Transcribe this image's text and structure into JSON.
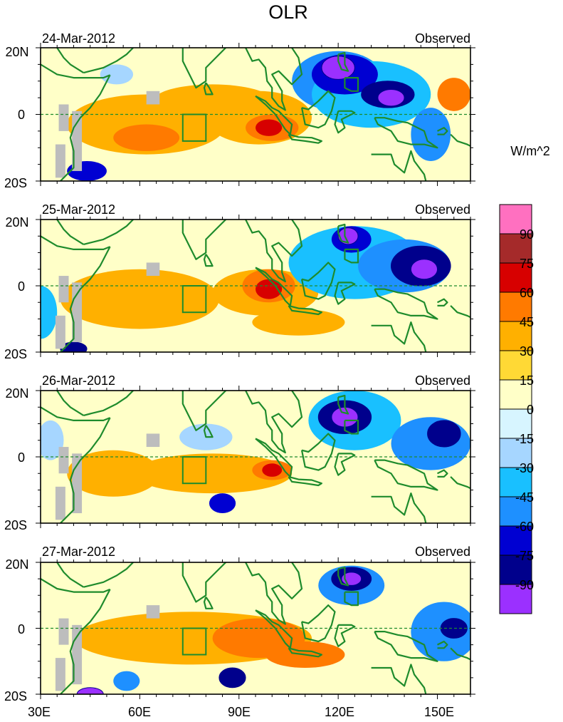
{
  "chart_data": {
    "type": "heatmap",
    "title": "OLR",
    "units": "W/m^2",
    "panel_label_right": "Observed",
    "panels": [
      {
        "date": "24-Mar-2012"
      },
      {
        "date": "25-Mar-2012"
      },
      {
        "date": "26-Mar-2012"
      },
      {
        "date": "27-Mar-2012"
      }
    ],
    "lat_range": [
      -20,
      20
    ],
    "lon_range": [
      30,
      160
    ],
    "lat_ticks": [
      {
        "value": 20,
        "label": "20N"
      },
      {
        "value": 0,
        "label": "0"
      },
      {
        "value": -20,
        "label": "20S"
      }
    ],
    "lon_ticks": [
      {
        "value": 30,
        "label": "30E"
      },
      {
        "value": 60,
        "label": "60E"
      },
      {
        "value": 90,
        "label": "90E"
      },
      {
        "value": 120,
        "label": "120E"
      },
      {
        "value": 150,
        "label": "150E"
      }
    ],
    "box_region": {
      "lon": [
        73,
        80
      ],
      "lat": [
        -8,
        0
      ]
    },
    "colorbar": {
      "labels": [
        "90",
        "75",
        "60",
        "45",
        "30",
        "15",
        "0",
        "-15",
        "-30",
        "-45",
        "-60",
        "-75",
        "-90"
      ],
      "colors": [
        "#ff70c0",
        "#a52a2a",
        "#d70000",
        "#ff7a00",
        "#ffb000",
        "#ffd935",
        "#ffffc8",
        "#d7f5ff",
        "#a6d6ff",
        "#19c0ff",
        "#1e90ff",
        "#0000d2",
        "#00008c",
        "#9b30ff"
      ]
    },
    "blobs": [
      [
        {
          "lon": 62,
          "lat": -3,
          "rx": 24,
          "ry": 9,
          "level": 30
        },
        {
          "lon": 96,
          "lat": -1,
          "rx": 16,
          "ry": 8,
          "level": 30
        },
        {
          "lon": 62,
          "lat": -7,
          "rx": 10,
          "ry": 4,
          "level": 45
        },
        {
          "lon": 100,
          "lat": -4,
          "rx": 8,
          "ry": 4,
          "level": 45
        },
        {
          "lon": 99,
          "lat": -4,
          "rx": 4,
          "ry": 2.5,
          "level": 60
        },
        {
          "lon": 155,
          "lat": 6,
          "rx": 5,
          "ry": 5,
          "level": 45
        },
        {
          "lon": 82,
          "lat": 4,
          "rx": 18,
          "ry": 5,
          "level": 30
        },
        {
          "lon": 120,
          "lat": 10,
          "rx": 14,
          "ry": 9,
          "level": -45
        },
        {
          "lon": 130,
          "lat": 6,
          "rx": 18,
          "ry": 10,
          "level": -30
        },
        {
          "lon": 122,
          "lat": 12,
          "rx": 10,
          "ry": 6,
          "level": -60
        },
        {
          "lon": 120,
          "lat": 14,
          "rx": 5,
          "ry": 3.5,
          "level": -90
        },
        {
          "lon": 135,
          "lat": 6,
          "rx": 8,
          "ry": 4,
          "level": -75
        },
        {
          "lon": 136,
          "lat": 5,
          "rx": 4,
          "ry": 2.5,
          "level": -90
        },
        {
          "lon": 148,
          "lat": -6,
          "rx": 6,
          "ry": 8,
          "level": -45
        },
        {
          "lon": 44,
          "lat": -17,
          "rx": 6,
          "ry": 3,
          "level": -60
        },
        {
          "lon": 53,
          "lat": 12,
          "rx": 5,
          "ry": 3,
          "level": -15
        }
      ],
      [
        {
          "lon": 60,
          "lat": -4,
          "rx": 24,
          "ry": 9,
          "level": 30
        },
        {
          "lon": 98,
          "lat": -2,
          "rx": 16,
          "ry": 7,
          "level": 30
        },
        {
          "lon": 99,
          "lat": 0,
          "rx": 8,
          "ry": 5,
          "level": 45
        },
        {
          "lon": 99,
          "lat": -1,
          "rx": 4,
          "ry": 3,
          "level": 60
        },
        {
          "lon": 108,
          "lat": -11,
          "rx": 14,
          "ry": 4,
          "level": 30
        },
        {
          "lon": 125,
          "lat": 7,
          "rx": 20,
          "ry": 11,
          "level": -30
        },
        {
          "lon": 140,
          "lat": 6,
          "rx": 14,
          "ry": 8,
          "level": -45
        },
        {
          "lon": 145,
          "lat": 6,
          "rx": 9,
          "ry": 6,
          "level": -75
        },
        {
          "lon": 146,
          "lat": 5,
          "rx": 4,
          "ry": 3,
          "level": -90
        },
        {
          "lon": 124,
          "lat": 14,
          "rx": 6,
          "ry": 4,
          "level": -60
        },
        {
          "lon": 123,
          "lat": 15,
          "rx": 3,
          "ry": 2.5,
          "level": -90
        },
        {
          "lon": 30,
          "lat": -8,
          "rx": 5,
          "ry": 8,
          "level": -30
        },
        {
          "lon": 40,
          "lat": -19,
          "rx": 4,
          "ry": 2,
          "level": -75
        }
      ],
      [
        {
          "lon": 52,
          "lat": -5,
          "rx": 14,
          "ry": 7,
          "level": 30
        },
        {
          "lon": 82,
          "lat": -5,
          "rx": 24,
          "ry": 6,
          "level": 30
        },
        {
          "lon": 100,
          "lat": -4,
          "rx": 6,
          "ry": 3,
          "level": 45
        },
        {
          "lon": 100,
          "lat": -4,
          "rx": 3,
          "ry": 2,
          "level": 60
        },
        {
          "lon": 125,
          "lat": 11,
          "rx": 14,
          "ry": 9,
          "level": -30
        },
        {
          "lon": 122,
          "lat": 12,
          "rx": 8,
          "ry": 5,
          "level": -75
        },
        {
          "lon": 122,
          "lat": 12,
          "rx": 4,
          "ry": 3,
          "level": -90
        },
        {
          "lon": 148,
          "lat": 4,
          "rx": 12,
          "ry": 8,
          "level": -45
        },
        {
          "lon": 152,
          "lat": 7,
          "rx": 5,
          "ry": 4,
          "level": -75
        },
        {
          "lon": 85,
          "lat": -14,
          "rx": 4,
          "ry": 3,
          "level": -60
        },
        {
          "lon": 33,
          "lat": 5,
          "rx": 4,
          "ry": 6,
          "level": -15
        },
        {
          "lon": 80,
          "lat": 6,
          "rx": 8,
          "ry": 4,
          "level": -15
        }
      ],
      [
        {
          "lon": 76,
          "lat": -3,
          "rx": 36,
          "ry": 8,
          "level": 30
        },
        {
          "lon": 96,
          "lat": -3,
          "rx": 14,
          "ry": 6,
          "level": 45
        },
        {
          "lon": 110,
          "lat": -8,
          "rx": 12,
          "ry": 4,
          "level": 45
        },
        {
          "lon": 124,
          "lat": 13,
          "rx": 10,
          "ry": 6,
          "level": -45
        },
        {
          "lon": 124,
          "lat": 15,
          "rx": 6,
          "ry": 3.5,
          "level": -75
        },
        {
          "lon": 124,
          "lat": 15,
          "rx": 3,
          "ry": 2,
          "level": -90
        },
        {
          "lon": 152,
          "lat": -1,
          "rx": 10,
          "ry": 9,
          "level": -45
        },
        {
          "lon": 155,
          "lat": 0,
          "rx": 4,
          "ry": 3,
          "level": -75
        },
        {
          "lon": 88,
          "lat": -15,
          "rx": 4,
          "ry": 3,
          "level": -75
        },
        {
          "lon": 56,
          "lat": -16,
          "rx": 4,
          "ry": 3,
          "level": -45
        },
        {
          "lon": 45,
          "lat": -20,
          "rx": 4,
          "ry": 2,
          "level": -90
        }
      ]
    ]
  }
}
